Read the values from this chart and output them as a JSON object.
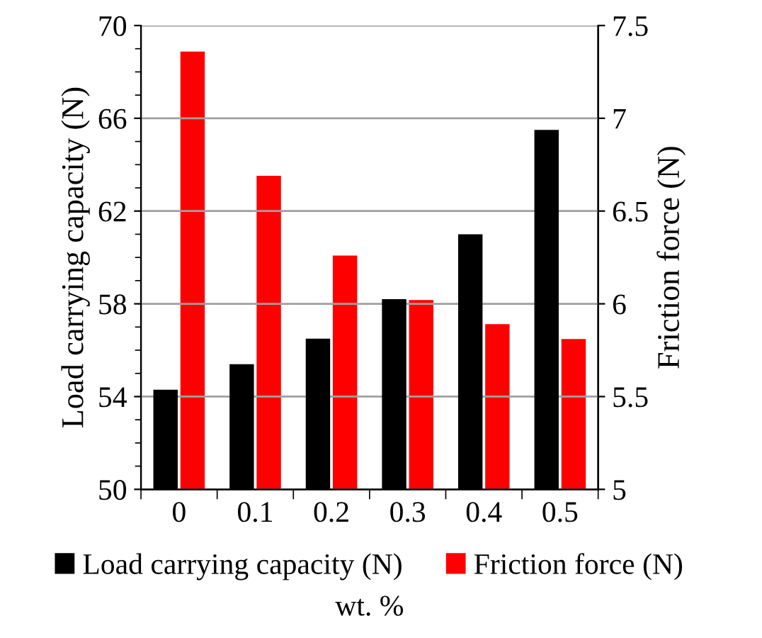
{
  "chart_data": {
    "type": "bar",
    "xlabel": "wt. %",
    "ylabel": "Load carrying capacity (N)",
    "y2label": "Friction force (N)",
    "categories": [
      "0",
      "0.1",
      "0.2",
      "0.3",
      "0.4",
      "0.5"
    ],
    "series": [
      {
        "name": "Load carrying capacity (N)",
        "color": "#000000",
        "values": [
          54.3,
          55.4,
          56.5,
          58.2,
          61.0,
          65.5
        ]
      },
      {
        "name": "Friction force (N)",
        "color": "#ff0000",
        "axis": "y2",
        "values": [
          7.36,
          6.69,
          6.26,
          6.02,
          5.89,
          5.81
        ]
      }
    ],
    "ylim": [
      50,
      70
    ],
    "yticks": [
      50,
      54,
      58,
      62,
      66,
      70
    ],
    "y2lim": [
      5,
      7.5
    ],
    "y2ticks": [
      5,
      5.5,
      6,
      6.5,
      7,
      7.5
    ],
    "grid": "y",
    "legend": "bottom"
  }
}
